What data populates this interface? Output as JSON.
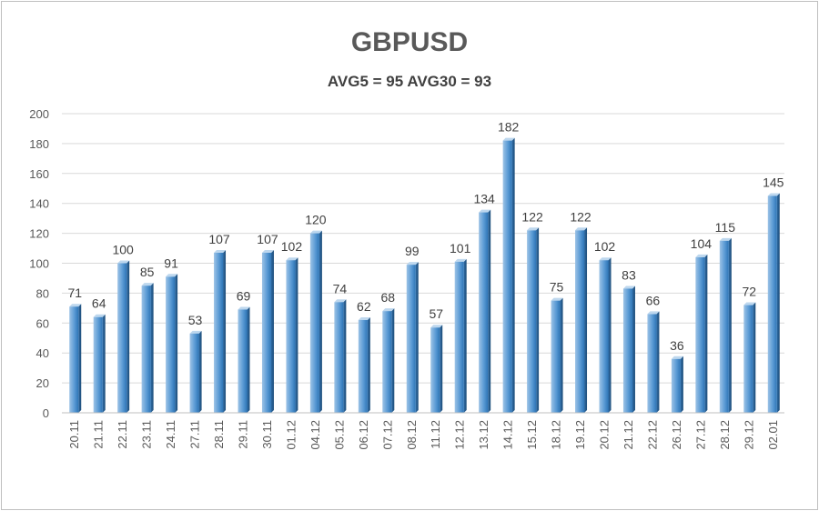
{
  "chart_data": {
    "type": "bar",
    "title": "GBPUSD",
    "subtitle": "AVG5 = 95 AVG30 = 93",
    "xlabel": "",
    "ylabel": "",
    "ylim": [
      0,
      200
    ],
    "yticks": [
      0,
      20,
      40,
      60,
      80,
      100,
      120,
      140,
      160,
      180,
      200
    ],
    "grid": true,
    "legend": "none",
    "bar_color": "#5b9bd5",
    "categories": [
      "20.11",
      "21.11",
      "22.11",
      "23.11",
      "24.11",
      "27.11",
      "28.11",
      "29.11",
      "30.11",
      "01.12",
      "04.12",
      "05.12",
      "06.12",
      "07.12",
      "08.12",
      "11.12",
      "12.12",
      "13.12",
      "14.12",
      "15.12",
      "18.12",
      "19.12",
      "20.12",
      "21.12",
      "22.12",
      "26.12",
      "27.12",
      "28.12",
      "29.12",
      "02.01"
    ],
    "values": [
      71,
      64,
      100,
      85,
      91,
      53,
      107,
      69,
      107,
      102,
      120,
      74,
      62,
      68,
      99,
      57,
      101,
      134,
      182,
      122,
      75,
      122,
      102,
      83,
      66,
      36,
      104,
      115,
      72,
      145
    ]
  }
}
